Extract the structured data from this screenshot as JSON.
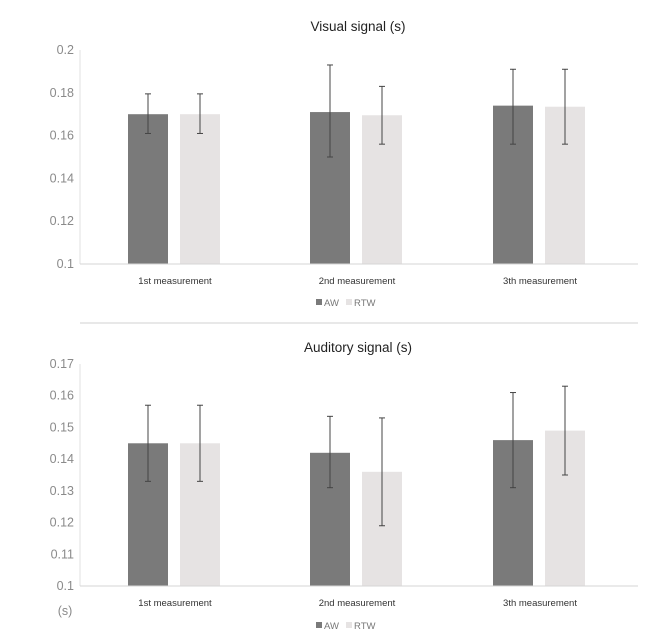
{
  "chart_data": [
    {
      "type": "bar",
      "title": "Visual signal (s)",
      "xlabel": "",
      "ylabel": "",
      "categories": [
        "1st measurement",
        "2nd measurement",
        "3th measurement"
      ],
      "ylim": [
        0.1,
        0.2
      ],
      "yticks": [
        "0.1",
        "0.12",
        "0.14",
        "0.16",
        "0.18",
        "0.2"
      ],
      "legend": "bottom",
      "grid": false,
      "series": [
        {
          "name": "AW",
          "color": "#7a7a7a",
          "values": [
            0.17,
            0.171,
            0.174
          ],
          "err_low": [
            0.161,
            0.15,
            0.156
          ],
          "err_high": [
            0.1795,
            0.193,
            0.191
          ]
        },
        {
          "name": "RTW",
          "color": "#e6e3e3",
          "values": [
            0.17,
            0.1695,
            0.1735
          ],
          "err_low": [
            0.161,
            0.156,
            0.156
          ],
          "err_high": [
            0.1795,
            0.183,
            0.191
          ]
        }
      ]
    },
    {
      "type": "bar",
      "title": "Auditory signal (s)",
      "xlabel": "",
      "ylabel": "(s)",
      "categories": [
        "1st measurement",
        "2nd measurement",
        "3th measurement"
      ],
      "ylim": [
        0.1,
        0.17
      ],
      "yticks": [
        "0.1",
        "0.11",
        "0.12",
        "0.13",
        "0.14",
        "0.15",
        "0.16",
        "0.17"
      ],
      "legend": "bottom",
      "grid": false,
      "series": [
        {
          "name": "AW",
          "color": "#7a7a7a",
          "values": [
            0.145,
            0.142,
            0.146
          ],
          "err_low": [
            0.133,
            0.131,
            0.131
          ],
          "err_high": [
            0.157,
            0.1535,
            0.161
          ]
        },
        {
          "name": "RTW",
          "color": "#e6e3e3",
          "values": [
            0.145,
            0.136,
            0.149
          ],
          "err_low": [
            0.133,
            0.119,
            0.135
          ],
          "err_high": [
            0.157,
            0.153,
            0.163
          ]
        }
      ]
    }
  ]
}
